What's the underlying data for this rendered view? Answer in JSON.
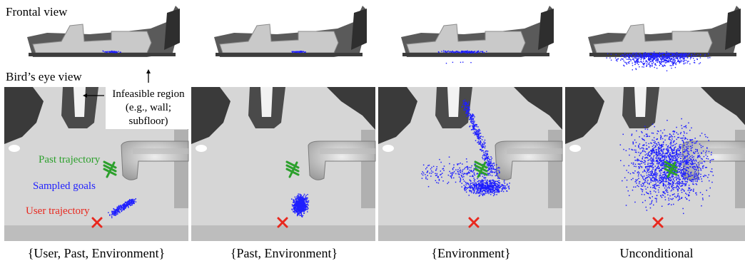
{
  "labels": {
    "frontal_view": "Frontal view",
    "birds_eye_view": "Bird’s eye view"
  },
  "annotations": {
    "infeasible_line1": "Infeasible region",
    "infeasible_line2": "(e.g., wall;",
    "infeasible_line3": "subfloor)",
    "past_trajectory": "Past trajectory",
    "sampled_goals": "Sampled goals",
    "user_trajectory": "User trajectory"
  },
  "captions": [
    "{User, Past, Environment}",
    "{Past, Environment}",
    "{Environment}",
    "Unconditional"
  ],
  "colors": {
    "past_trajectory": "#2ca02c",
    "sampled_goals": "#1f1fff",
    "user_trajectory": "#e8281e",
    "floor": "#d6d6d6",
    "wall": "#3a3a3a"
  }
}
